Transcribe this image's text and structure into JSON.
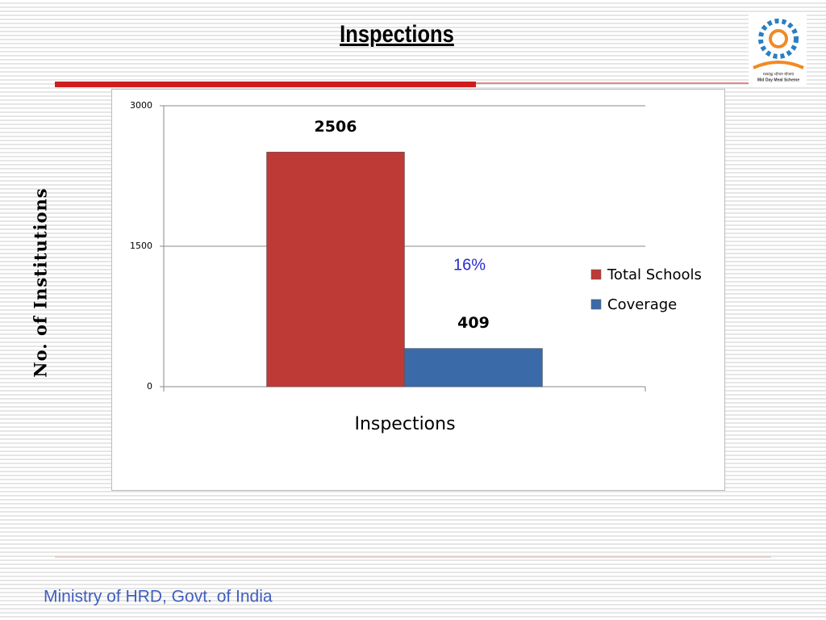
{
  "chart_data": {
    "type": "bar",
    "title": "Inspections",
    "y_label": "No. of Institutions",
    "x_label": "Inspections",
    "annotation": "16%",
    "categories": [
      null
    ],
    "series": [
      {
        "name": "Total Schools",
        "color": "#be3a36",
        "values": [
          2506
        ]
      },
      {
        "name": "Coverage",
        "color": "#3b6aa8",
        "values": [
          409
        ]
      }
    ],
    "ylim": [
      0,
      3000
    ],
    "yticks": [
      0,
      1500,
      3000
    ],
    "grid": true,
    "legend": "right"
  },
  "logo": {
    "hindi": "मध्याह्न भोजन योजना",
    "text": "Mid Day Meal Scheme"
  },
  "footer": "Ministry of HRD, Govt. of India"
}
